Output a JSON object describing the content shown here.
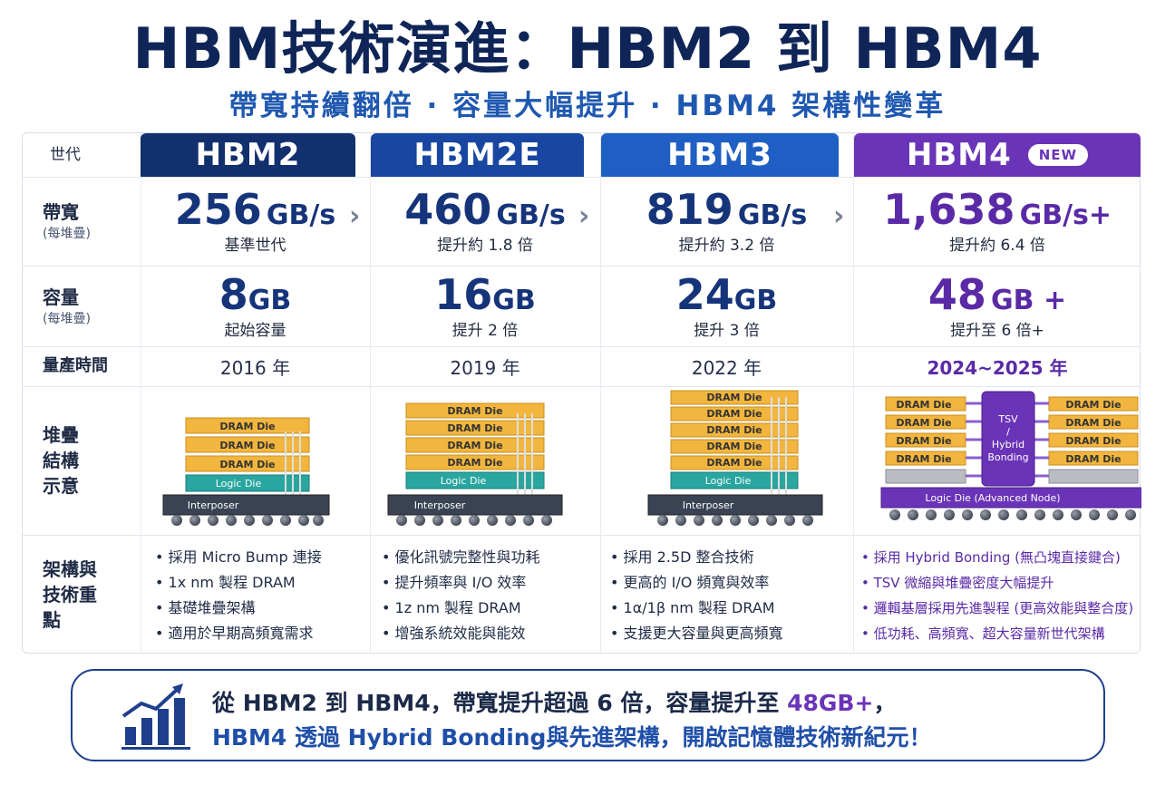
{
  "header": {
    "title": "HBM技術演進：HBM2 到 HBM4",
    "subtitle": "帶寬持續翻倍 · 容量大幅提升 · HBM4 架構性變革"
  },
  "table": {
    "generation_label": "世代",
    "rows": {
      "bandwidth": {
        "label": "帶寬",
        "sub": "(每堆疊)"
      },
      "capacity": {
        "label": "容量",
        "sub": "(每堆疊)"
      },
      "production": {
        "label": "量產時間"
      },
      "stack": {
        "label": "堆疊結構示意"
      },
      "features": {
        "label": "架構與技術重點"
      }
    },
    "columns": [
      {
        "name": "HBM2",
        "color": "#12306e",
        "text_color": "#16347a",
        "bandwidth_value": "256",
        "bandwidth_unit": "GB/s",
        "bandwidth_note": "基準世代",
        "capacity_value": "8",
        "capacity_unit": "GB",
        "capacity_note": "起始容量",
        "year": "2016 年",
        "features": [
          "採用 Micro Bump 連接",
          "1x nm 製程 DRAM",
          "基礎堆疊架構",
          "適用於早期高頻寬需求"
        ]
      },
      {
        "name": "HBM2E",
        "color": "#1846a0",
        "text_color": "#16347a",
        "bandwidth_value": "460",
        "bandwidth_unit": "GB/s",
        "bandwidth_note": "提升約 1.8 倍",
        "capacity_value": "16",
        "capacity_unit": "GB",
        "capacity_note": "提升 2 倍",
        "year": "2019 年",
        "features": [
          "優化訊號完整性與功耗",
          "提升頻率與 I/O 效率",
          "1z nm 製程 DRAM",
          "增強系統效能與能效"
        ]
      },
      {
        "name": "HBM3",
        "color": "#1f5fc4",
        "text_color": "#16347a",
        "bandwidth_value": "819",
        "bandwidth_unit": "GB/s",
        "bandwidth_note": "提升約 3.2 倍",
        "capacity_value": "24",
        "capacity_unit": "GB",
        "capacity_note": "提升 3 倍",
        "year": "2022 年",
        "features": [
          "採用 2.5D 整合技術",
          "更高的 I/O 頻寬與效率",
          "1α/1β nm 製程 DRAM",
          "支援更大容量與更高頻寬"
        ]
      },
      {
        "name": "HBM4",
        "badge": "NEW",
        "color": "#6a34b8",
        "text_color": "#5a2aa6",
        "bandwidth_value": "1,638",
        "bandwidth_unit": "GB/s+",
        "bandwidth_note": "提升約 6.4 倍",
        "capacity_value": "48",
        "capacity_unit": "GB +",
        "capacity_note": "提升至 6 倍+",
        "year": "2024~2025 年",
        "features": [
          "採用 Hybrid Bonding (無凸塊直接鍵合)",
          "TSV 微縮與堆疊密度大幅提升",
          "邏輯基層採用先進製程 (更高效能與整合度)",
          "低功耗、高頻寬、超大容量新世代架構"
        ]
      }
    ]
  },
  "diagram_labels": {
    "dram": "DRAM Die",
    "logic": "Logic Die",
    "interposer": "Interposer",
    "tsv": [
      "TSV",
      "/",
      "Hybrid",
      "Bonding"
    ],
    "logic_adv": "Logic Die (Advanced Node)"
  },
  "footer": {
    "line1_a": "從 HBM2 到 HBM4，帶寬提升超過 6 倍，容量提升至 ",
    "line1_hl": "48GB+",
    "line1_b": "，",
    "line2": "HBM4 透過 Hybrid Bonding與先進架構，開啟記憶體技術新紀元！"
  },
  "colors": {
    "dram_fill": "#f2b63e",
    "logic_fill": "#2aa6a0",
    "interposer_fill": "#3a4354",
    "hbm4_accent": "#6a34b8",
    "gray_die": "#b9bcc2"
  },
  "icons": [
    "chart-growth-icon",
    "chevron-right-icon"
  ]
}
